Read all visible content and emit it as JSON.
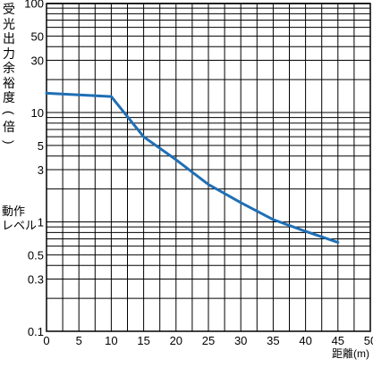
{
  "chart_data": {
    "type": "line",
    "title": "",
    "ylabel": "受光出力余裕度(倍)",
    "xlabel": "距離(m)",
    "xscale": "linear",
    "yscale": "log",
    "xlim": [
      0,
      50
    ],
    "ylim": [
      0.1,
      110
    ],
    "xticks": [
      "0",
      "5",
      "10",
      "15",
      "20",
      "25",
      "30",
      "35",
      "40",
      "45",
      "50"
    ],
    "yticks": [
      {
        "label": "100",
        "value": 100
      },
      {
        "label": "50",
        "value": 50
      },
      {
        "label": "30",
        "value": 30
      },
      {
        "label": "10",
        "value": 10
      },
      {
        "label": "5",
        "value": 5
      },
      {
        "label": "3",
        "value": 3
      },
      {
        "label": "1",
        "value": 1
      },
      {
        "label": "0.5",
        "value": 0.5
      },
      {
        "label": "0.3",
        "value": 0.3
      },
      {
        "label": "0.1",
        "value": 0.1
      }
    ],
    "grid": true,
    "annotations": [
      {
        "text1": "動作",
        "text2": "レベル",
        "y": 1
      }
    ],
    "series": [
      {
        "color": "#1f6fb5",
        "x": [
          0,
          10,
          15,
          20,
          25,
          30,
          35,
          40,
          45
        ],
        "y": [
          15,
          14,
          6,
          3.7,
          2.2,
          1.5,
          1.05,
          0.82,
          0.65
        ]
      }
    ]
  }
}
